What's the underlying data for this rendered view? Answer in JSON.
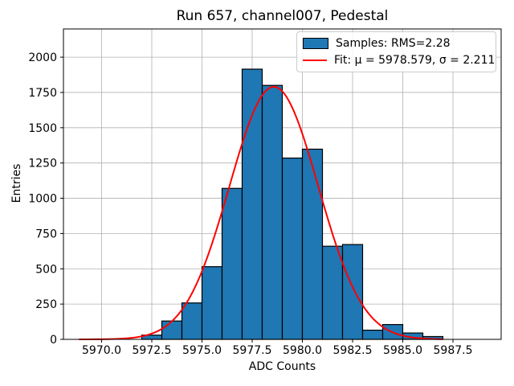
{
  "chart_data": {
    "type": "bar",
    "subtype": "histogram-with-gaussian-fit",
    "title": "Run 657, channel007, Pedestal",
    "xlabel": "ADC Counts",
    "ylabel": "Entries",
    "xlim": [
      5968.1,
      5989.9
    ],
    "ylim": [
      0,
      2200
    ],
    "xticks": [
      5970.0,
      5972.5,
      5975.0,
      5977.5,
      5980.0,
      5982.5,
      5985.0,
      5987.5
    ],
    "yticks": [
      0,
      250,
      500,
      750,
      1000,
      1250,
      1500,
      1750,
      2000
    ],
    "grid": true,
    "bin_start": 5972,
    "bin_width": 1,
    "bin_edges": [
      5972,
      5973,
      5974,
      5975,
      5976,
      5977,
      5978,
      5979,
      5980,
      5981,
      5982,
      5983,
      5984,
      5985,
      5986,
      5987
    ],
    "counts": [
      30,
      130,
      258,
      515,
      1070,
      1915,
      1800,
      1285,
      1348,
      660,
      672,
      65,
      105,
      45,
      20
    ],
    "fit": {
      "mu": 5978.579,
      "sigma": 2.211,
      "amplitude": 1790,
      "curve_x_range": [
        5968.9,
        5987.05
      ]
    },
    "stats": {
      "rms": 2.28
    },
    "legend": {
      "position": "upper-right",
      "entries": [
        {
          "label": "Samples: RMS=2.28",
          "marker": "patch"
        },
        {
          "label": "Fit: μ = 5978.579, σ = 2.211",
          "marker": "line"
        }
      ]
    },
    "colors": {
      "bar_fill": "#1f77b4",
      "bar_edge": "#000000",
      "fit_line": "#ff0000",
      "grid": "#b0b0b0",
      "axes": "#000000",
      "background": "#ffffff"
    }
  }
}
